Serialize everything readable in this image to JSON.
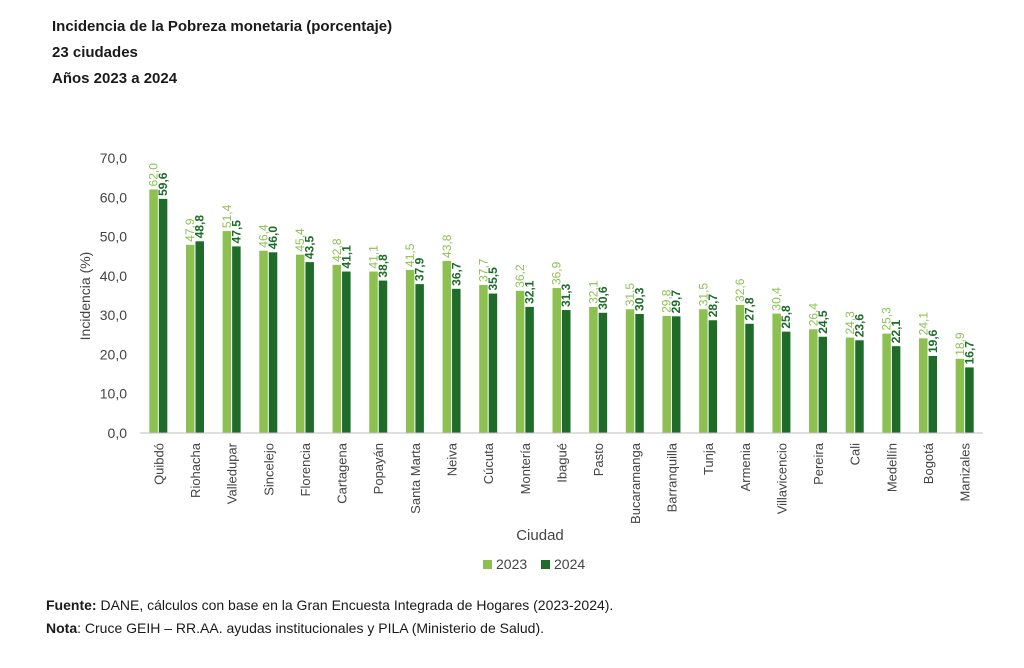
{
  "header": {
    "title": "Incidencia de la Pobreza monetaria (porcentaje)",
    "subtitle": "23 ciudades",
    "period": "Años 2023 a 2024"
  },
  "footer": {
    "source_label": "Fuente:",
    "source_text": " DANE, cálculos con base en la Gran Encuesta Integrada de Hogares (2023-2024).",
    "note_label": "Nota",
    "note_text": ": Cruce GEIH – RR.AA. ayudas institucionales y PILA (Ministerio de Salud)."
  },
  "chart_data": {
    "type": "bar",
    "xlabel": "Ciudad",
    "ylabel": "Incidencia  (%)",
    "ylim": [
      0,
      70
    ],
    "yticks": [
      "0,0",
      "10,0",
      "20,0",
      "30,0",
      "40,0",
      "50,0",
      "60,0",
      "70,0"
    ],
    "legend_position": "bottom",
    "categories": [
      "Quibdó",
      "Riohacha",
      "Valledupar",
      "Sincelejo",
      "Florencia",
      "Cartagena",
      "Popayán",
      "Santa Marta",
      "Neiva",
      "Cúcuta",
      "Montería",
      "Ibagué",
      "Pasto",
      "Bucaramanga",
      "Barranquilla",
      "Tunja",
      "Armenia",
      "Villavicencio",
      "Pereira",
      "Cali",
      "Medellín",
      "Bogotá",
      "Manizales"
    ],
    "series": [
      {
        "name": "2023",
        "color": "#8cc152",
        "values": [
          62.0,
          47.9,
          51.4,
          46.4,
          45.4,
          42.8,
          41.1,
          41.5,
          43.8,
          37.7,
          36.2,
          36.9,
          32.1,
          31.5,
          29.8,
          31.5,
          32.6,
          30.4,
          26.4,
          24.3,
          25.3,
          24.1,
          18.9
        ],
        "labels": [
          "62,0",
          "47,9",
          "51,4",
          "46,4",
          "45,4",
          "42,8",
          "41,1",
          "41,5",
          "43,8",
          "37,7",
          "36,2",
          "36,9",
          "32,1",
          "31,5",
          "29,8",
          "31,5",
          "32,6",
          "30,4",
          "26,4",
          "24,3",
          "25,3",
          "24,1",
          "18,9"
        ]
      },
      {
        "name": "2024",
        "color": "#1e6b2a",
        "values": [
          59.6,
          48.8,
          47.5,
          46.0,
          43.5,
          41.1,
          38.8,
          37.9,
          36.7,
          35.5,
          32.1,
          31.3,
          30.6,
          30.3,
          29.7,
          28.7,
          27.8,
          25.8,
          24.5,
          23.6,
          22.1,
          19.6,
          16.7
        ],
        "labels": [
          "59,6",
          "48,8",
          "47,5",
          "46,0",
          "43,5",
          "41,1",
          "38,8",
          "37,9",
          "36,7",
          "35,5",
          "32,1",
          "31,3",
          "30,6",
          "30,3",
          "29,7",
          "28,7",
          "27,8",
          "25,8",
          "24,5",
          "23,6",
          "22,1",
          "19,6",
          "16,7"
        ]
      }
    ]
  }
}
